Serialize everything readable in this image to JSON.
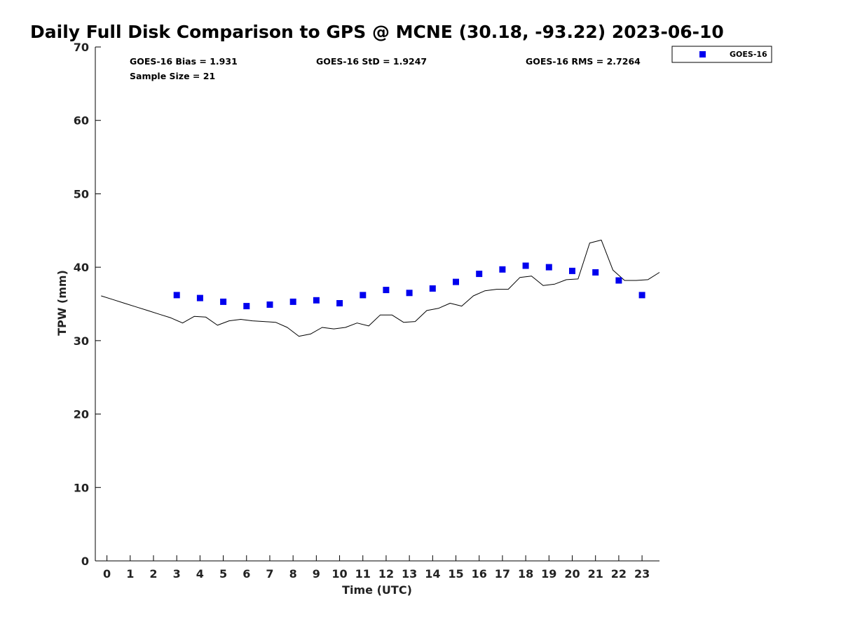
{
  "chart_data": {
    "type": "scatter",
    "title": "Daily Full Disk Comparison to GPS @ MCNE (30.18, -93.22) 2023-06-10",
    "xlabel": "Time (UTC)",
    "ylabel": "TPW (mm)",
    "xlim": [
      -0.5,
      23.75
    ],
    "ylim": [
      0,
      70
    ],
    "x_ticks": [
      0,
      1,
      2,
      3,
      4,
      5,
      6,
      7,
      8,
      9,
      10,
      11,
      12,
      13,
      14,
      15,
      16,
      17,
      18,
      19,
      20,
      21,
      22,
      23
    ],
    "y_ticks": [
      0,
      10,
      20,
      30,
      40,
      50,
      60,
      70
    ],
    "grid": false,
    "legend_position": "outside-top-right",
    "stats": {
      "bias": "GOES-16 Bias = 1.931",
      "std": "GOES-16 StD = 1.9247",
      "rms": "GOES-16 RMS = 2.7264",
      "sample": "Sample Size = 21"
    },
    "series": [
      {
        "name": "GOES-16",
        "kind": "points",
        "color": "#0000ee",
        "marker": "square",
        "x": [
          3,
          4,
          5,
          6,
          7,
          8,
          9,
          10,
          11,
          12,
          13,
          14,
          15,
          16,
          17,
          18,
          19,
          20,
          21,
          22,
          23
        ],
        "y": [
          36.2,
          35.8,
          35.3,
          34.7,
          34.9,
          35.3,
          35.5,
          35.1,
          36.2,
          36.9,
          36.5,
          37.1,
          38.0,
          39.1,
          39.7,
          40.2,
          40.0,
          39.5,
          39.3,
          38.2,
          36.2
        ]
      },
      {
        "kind": "line",
        "color": "#000000",
        "x": [
          -0.25,
          0.25,
          0.75,
          1.25,
          1.75,
          2.25,
          2.75,
          3.25,
          3.75,
          4.25,
          4.75,
          5.25,
          5.75,
          6.25,
          6.75,
          7.25,
          7.75,
          8.25,
          8.75,
          9.25,
          9.75,
          10.25,
          10.75,
          11.25,
          11.75,
          12.25,
          12.75,
          13.25,
          13.75,
          14.25,
          14.75,
          15.25,
          15.75,
          16.25,
          16.75,
          17.25,
          17.75,
          18.25,
          18.75,
          19.25,
          19.75,
          20.25,
          20.75,
          21.25,
          21.75,
          22.25,
          22.75,
          23.25,
          23.75
        ],
        "y": [
          36.1,
          35.6,
          35.1,
          34.6,
          34.1,
          33.6,
          33.1,
          32.4,
          33.3,
          33.2,
          32.1,
          32.7,
          32.9,
          32.7,
          32.6,
          32.5,
          31.8,
          30.6,
          30.9,
          31.8,
          31.6,
          31.8,
          32.4,
          32.0,
          33.5,
          33.5,
          32.5,
          32.6,
          34.1,
          34.4,
          35.1,
          34.7,
          36.1,
          36.8,
          37.0,
          37.0,
          38.6,
          38.8,
          37.5,
          37.7,
          38.3,
          38.4,
          43.3,
          43.7,
          39.6,
          38.2,
          38.2,
          38.3,
          39.3
        ]
      }
    ]
  }
}
